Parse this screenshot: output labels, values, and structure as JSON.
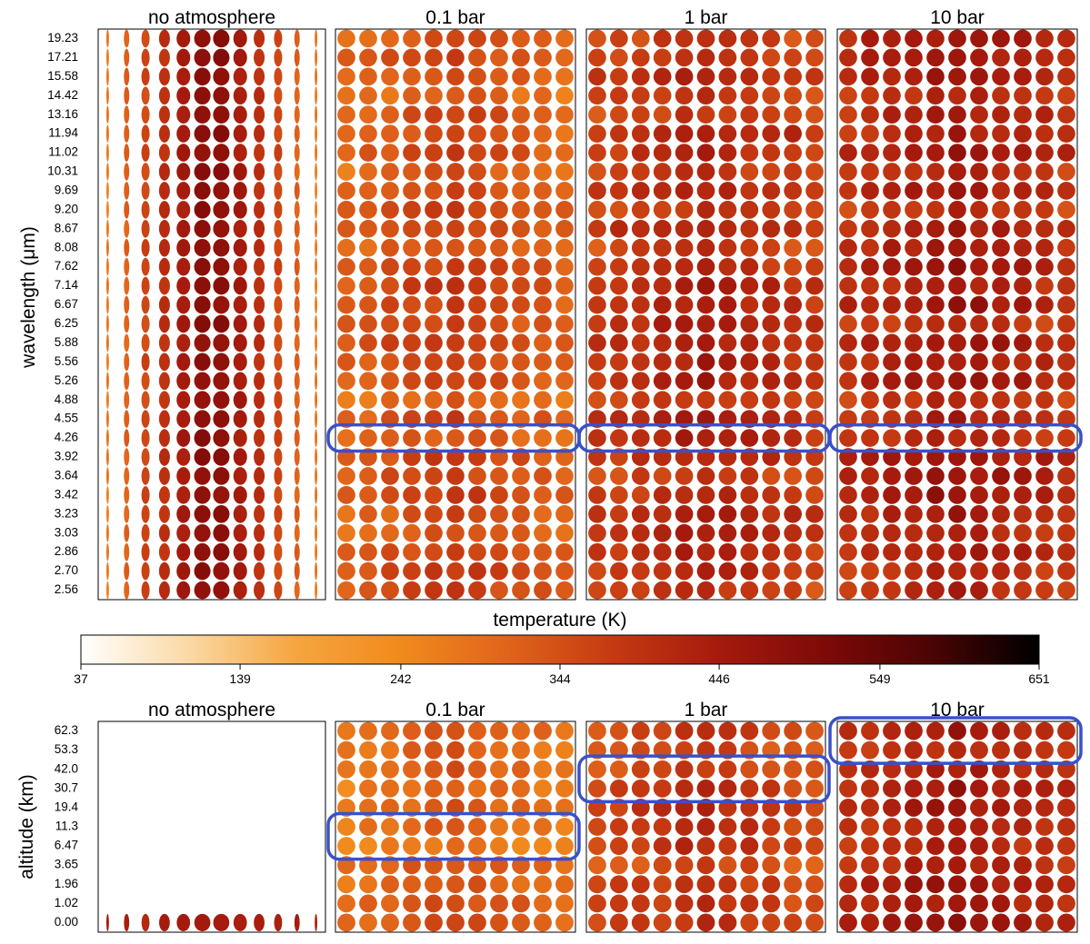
{
  "colors": {
    "highlight_box": "#3a50c8",
    "colormap_stops": [
      "#ffffff",
      "#fbd9a6",
      "#f5a640",
      "#f18a1c",
      "#e0641b",
      "#c53a12",
      "#a51a0d",
      "#7d0a08",
      "#4a0404",
      "#000000"
    ]
  },
  "chart_data": [
    {
      "type": "heatmap",
      "panel_group": "wavelength",
      "ylabel": "wavelength (μm)",
      "y_ticks": [
        "19.23",
        "17.21",
        "15.58",
        "14.42",
        "13.16",
        "11.94",
        "11.02",
        "10.31",
        "9.69",
        "9.20",
        "8.67",
        "8.08",
        "7.62",
        "7.14",
        "6.67",
        "6.25",
        "5.88",
        "5.56",
        "5.26",
        "4.88",
        "4.55",
        "4.26",
        "3.92",
        "3.64",
        "3.42",
        "3.23",
        "3.03",
        "2.86",
        "2.70",
        "2.56"
      ],
      "panels": [
        {
          "title": "no atmosphere",
          "columns": 12,
          "mean_temperature_K": 430,
          "highlight": null
        },
        {
          "title": "0.1 bar",
          "columns": 11,
          "mean_temperature_K": 330,
          "highlight": [
            "4.26",
            "4.26"
          ]
        },
        {
          "title": "1 bar",
          "columns": 11,
          "mean_temperature_K": 395,
          "highlight": [
            "4.26",
            "4.26"
          ]
        },
        {
          "title": "10 bar",
          "columns": 11,
          "mean_temperature_K": 420,
          "highlight": [
            "4.26",
            "4.26"
          ]
        }
      ]
    },
    {
      "type": "colorbar",
      "label": "temperature (K)",
      "ticks": [
        37,
        139,
        242,
        344,
        446,
        549,
        651
      ],
      "range": [
        37,
        651
      ]
    },
    {
      "type": "heatmap",
      "panel_group": "altitude",
      "ylabel": "altitude (km)",
      "y_ticks": [
        "62.3",
        "53.3",
        "42.0",
        "30.7",
        "19.4",
        "11.3",
        "6.47",
        "3.65",
        "1.96",
        "1.02",
        "0.00"
      ],
      "panels": [
        {
          "title": "no atmosphere",
          "columns": 12,
          "mean_temperature_K": 430,
          "highlight": null
        },
        {
          "title": "0.1 bar",
          "columns": 11,
          "mean_temperature_K": 300,
          "highlight": [
            "11.3",
            "6.47"
          ]
        },
        {
          "title": "1 bar",
          "columns": 11,
          "mean_temperature_K": 360,
          "highlight": [
            "42.0",
            "30.7"
          ]
        },
        {
          "title": "10 bar",
          "columns": 11,
          "mean_temperature_K": 420,
          "highlight": [
            "62.3",
            "53.3"
          ]
        }
      ]
    }
  ]
}
